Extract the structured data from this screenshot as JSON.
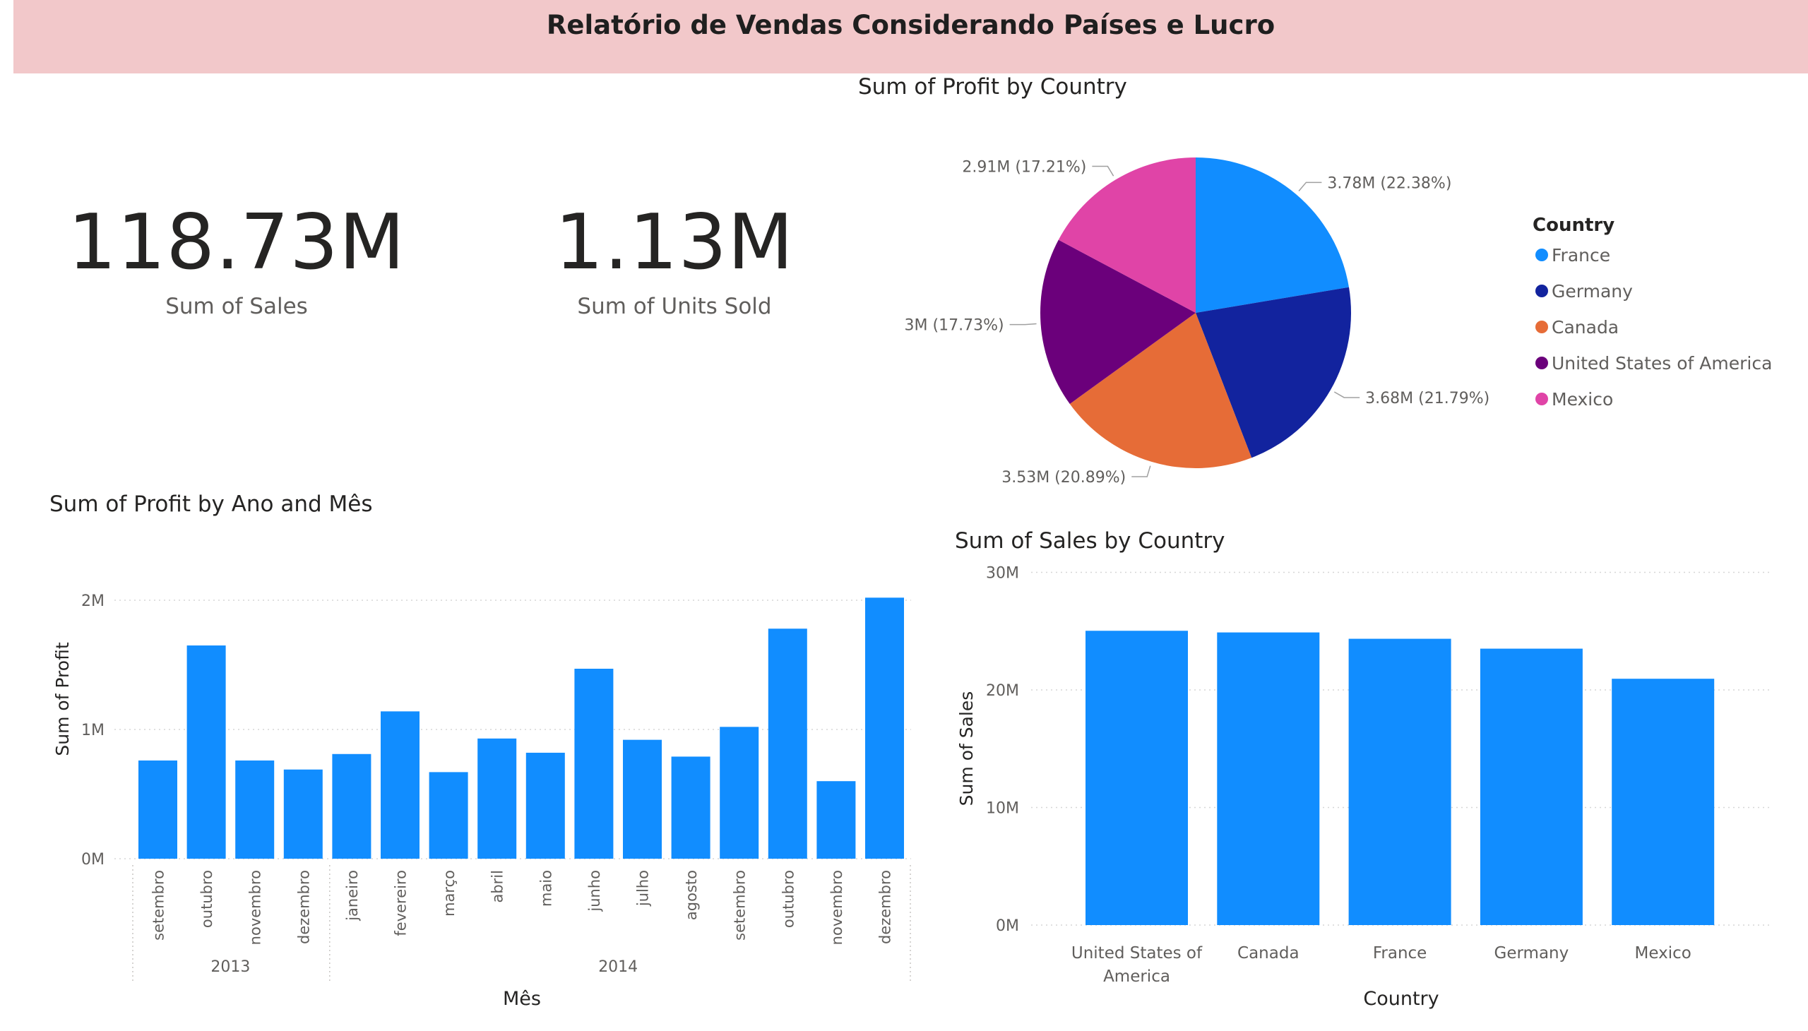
{
  "header": {
    "title": "Relatório de Vendas Considerando Países e Lucro"
  },
  "cards": [
    {
      "value": "118.73M",
      "label": "Sum of  Sales"
    },
    {
      "value": "1.13M",
      "label": "Sum of Units Sold"
    }
  ],
  "colors": {
    "banner": "#f2c8ca",
    "bar": "#118dff",
    "France": "#118dff",
    "Germany": "#12239e",
    "Canada": "#e66c37",
    "United States of America": "#6b007b",
    "Mexico": "#e044a7"
  },
  "chart_data": [
    {
      "type": "pie",
      "title": "Sum of Profit by Country",
      "legend_title": "Country",
      "legend_position": "right",
      "categories": [
        "France",
        "Germany",
        "Canada",
        "United States of America",
        "Mexico"
      ],
      "values": [
        3.78,
        3.68,
        3.53,
        3.0,
        2.91
      ],
      "unit": "M",
      "data_labels": [
        "3.78M (22.38%)",
        "3.68M (21.79%)",
        "3.53M (20.89%)",
        "3M (17.73%)",
        "2.91M (17.21%)"
      ]
    },
    {
      "type": "bar",
      "title": "Sum of Profit by Ano and Mês",
      "xlabel": "Mês",
      "ylabel": "Sum of Profit",
      "ylim": [
        0,
        2
      ],
      "y_ticks": [
        "0M",
        "1M",
        "2M"
      ],
      "grid": true,
      "groups": [
        {
          "label": "2013",
          "categories": [
            "setembro",
            "outubro",
            "novembro",
            "dezembro"
          ],
          "values": [
            0.76,
            1.65,
            0.76,
            0.69
          ]
        },
        {
          "label": "2014",
          "categories": [
            "janeiro",
            "fevereiro",
            "março",
            "abril",
            "maio",
            "junho",
            "julho",
            "agosto",
            "setembro",
            "outubro",
            "novembro",
            "dezembro"
          ],
          "values": [
            0.81,
            1.14,
            0.67,
            0.93,
            0.82,
            1.47,
            0.92,
            0.79,
            1.02,
            1.78,
            0.6,
            2.02
          ]
        }
      ]
    },
    {
      "type": "bar",
      "title": "Sum of Sales by Country",
      "xlabel": "Country",
      "ylabel": "Sum of Sales",
      "ylim": [
        0,
        30
      ],
      "y_ticks": [
        "0M",
        "10M",
        "20M",
        "30M"
      ],
      "grid": true,
      "categories": [
        "United States of America",
        "Canada",
        "France",
        "Germany",
        "Mexico"
      ],
      "category_lines": [
        [
          "United States of",
          "America"
        ],
        [
          "Canada"
        ],
        [
          "France"
        ],
        [
          "Germany"
        ],
        [
          "Mexico"
        ]
      ],
      "values": [
        25.03,
        24.89,
        24.35,
        23.51,
        20.95
      ]
    }
  ]
}
